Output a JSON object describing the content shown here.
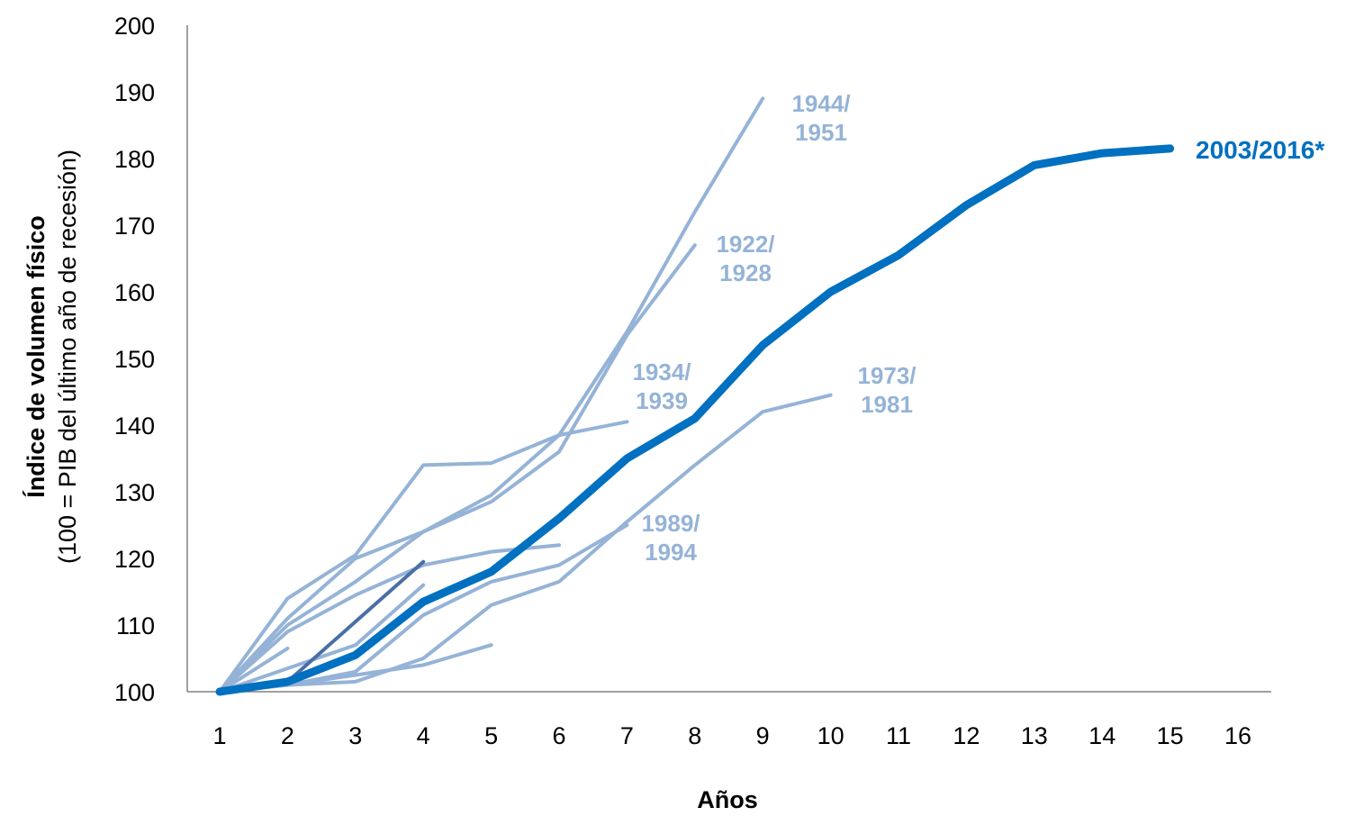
{
  "chart_data": {
    "type": "line",
    "xlabel": "Años",
    "ylabel": {
      "line1": "Índice de volumen físico",
      "line2": "(100 = PIB del último año de recesión)"
    },
    "x_ticks": [
      1,
      2,
      3,
      4,
      5,
      6,
      7,
      8,
      9,
      10,
      11,
      12,
      13,
      14,
      15,
      16
    ],
    "y_ticks": [
      100,
      110,
      120,
      130,
      140,
      150,
      160,
      170,
      180,
      190,
      200
    ],
    "xlim": [
      1,
      16
    ],
    "ylim": [
      100,
      200
    ],
    "grid": false,
    "legend": "none",
    "colors": {
      "highlight": "#0070C0",
      "historical": "#95B3D7",
      "dark": "#4A6FA5",
      "axis": "#808080"
    },
    "series": [
      {
        "name": "1944/\n1951",
        "color": "#95B3D7",
        "width": 4,
        "labeled": true,
        "x": [
          1,
          2,
          3,
          4,
          5,
          6,
          7,
          8,
          9
        ],
        "y": [
          100,
          110,
          116.5,
          124,
          129.5,
          138.5,
          154,
          172,
          189
        ]
      },
      {
        "name": "1922/\n1928",
        "color": "#95B3D7",
        "width": 4,
        "labeled": true,
        "x": [
          1,
          2,
          3,
          4,
          5,
          6,
          7,
          8
        ],
        "y": [
          100,
          111,
          120,
          124,
          128.5,
          136,
          153.5,
          167
        ]
      },
      {
        "name": "1934/\n1939",
        "color": "#95B3D7",
        "width": 4,
        "labeled": true,
        "x": [
          1,
          2,
          3,
          4,
          5,
          6,
          7
        ],
        "y": [
          100,
          114,
          120.5,
          134,
          134.3,
          138.5,
          140.5
        ]
      },
      {
        "name": "1973/\n1981",
        "color": "#95B3D7",
        "width": 4,
        "labeled": true,
        "x": [
          1,
          2,
          3,
          4,
          5,
          6,
          7,
          8,
          9,
          10
        ],
        "y": [
          100,
          101,
          101.5,
          105,
          113,
          116.5,
          125.5,
          134,
          142,
          144.5
        ]
      },
      {
        "name": "1989/\n1994",
        "color": "#95B3D7",
        "width": 4,
        "labeled": true,
        "x": [
          1,
          2,
          3,
          4,
          5,
          6,
          7
        ],
        "y": [
          100,
          101,
          103,
          111.5,
          116.5,
          119,
          125
        ]
      },
      {
        "color": "#95B3D7",
        "width": 4,
        "labeled": false,
        "x": [
          1,
          2,
          3,
          4,
          5,
          6
        ],
        "y": [
          100,
          109,
          114.5,
          119,
          121,
          122
        ]
      },
      {
        "color": "#95B3D7",
        "width": 4,
        "labeled": false,
        "x": [
          1,
          2,
          3,
          4
        ],
        "y": [
          100,
          103.5,
          107,
          116
        ]
      },
      {
        "color": "#95B3D7",
        "width": 4,
        "labeled": false,
        "x": [
          1,
          2,
          3,
          4,
          5
        ],
        "y": [
          100,
          101,
          102.5,
          104,
          107
        ]
      },
      {
        "color": "#95B3D7",
        "width": 4,
        "labeled": false,
        "x": [
          1,
          2
        ],
        "y": [
          100,
          106.5
        ]
      },
      {
        "color": "#4A6FA5",
        "width": 4,
        "labeled": false,
        "x": [
          1,
          2,
          3,
          4
        ],
        "y": [
          100,
          101.5,
          110.5,
          119.5
        ]
      },
      {
        "name": "2003/2016*",
        "color": "#0070C0",
        "width": 9,
        "labeled": true,
        "highlight": true,
        "x": [
          1,
          2,
          3,
          4,
          5,
          6,
          7,
          8,
          9,
          10,
          11,
          12,
          13,
          14,
          15
        ],
        "y": [
          100,
          101.5,
          105.5,
          113.5,
          118,
          126,
          135,
          141,
          152,
          160,
          165.5,
          173,
          179,
          180.8,
          181.5
        ]
      }
    ]
  }
}
